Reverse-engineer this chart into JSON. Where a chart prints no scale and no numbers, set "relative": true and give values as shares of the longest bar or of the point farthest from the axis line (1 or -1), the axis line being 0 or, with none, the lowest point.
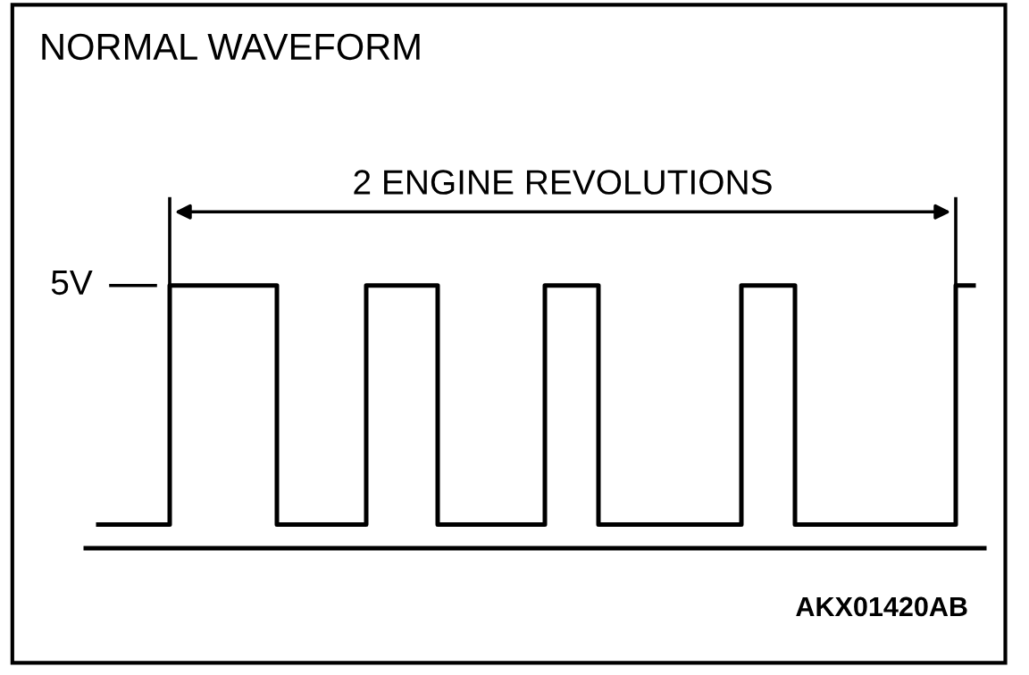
{
  "chart_data": {
    "type": "step",
    "title": "NORMAL WAVEFORM",
    "relative": true,
    "categories": [
      null,
      null,
      null,
      null,
      null,
      null,
      null,
      null,
      null,
      null,
      null,
      null,
      null,
      null,
      null,
      null,
      null,
      null,
      null,
      null,
      null,
      null,
      null,
      null,
      null,
      null,
      null,
      null,
      null,
      null,
      null,
      null,
      null,
      null,
      null,
      null,
      null,
      null,
      null,
      null,
      null,
      null,
      null,
      null,
      null,
      null,
      null,
      null,
      null,
      null
    ],
    "series": [
      {
        "color": "#000000",
        "values": [
          0.09,
          0.09,
          0.09,
          0.09,
          1,
          1,
          1,
          1,
          1,
          1,
          0.09,
          0.09,
          0.09,
          0.09,
          0.09,
          1,
          1,
          1,
          1,
          0.09,
          0.09,
          0.09,
          0.09,
          0.09,
          0.09,
          1,
          1,
          1,
          0.09,
          0.09,
          0.09,
          0.09,
          0.09,
          0.09,
          0.09,
          0.09,
          1,
          1,
          1,
          0.09,
          0.09,
          0.09,
          0.09,
          0.09,
          0.09,
          0.09,
          0.09,
          0.09,
          1,
          1
        ]
      }
    ],
    "annotations": [
      "2 ENGINE REVOLUTIONS",
      "5V",
      "AKX01420AB"
    ],
    "grid": false,
    "legend": false,
    "marker": "none",
    "line_style": "solid"
  }
}
